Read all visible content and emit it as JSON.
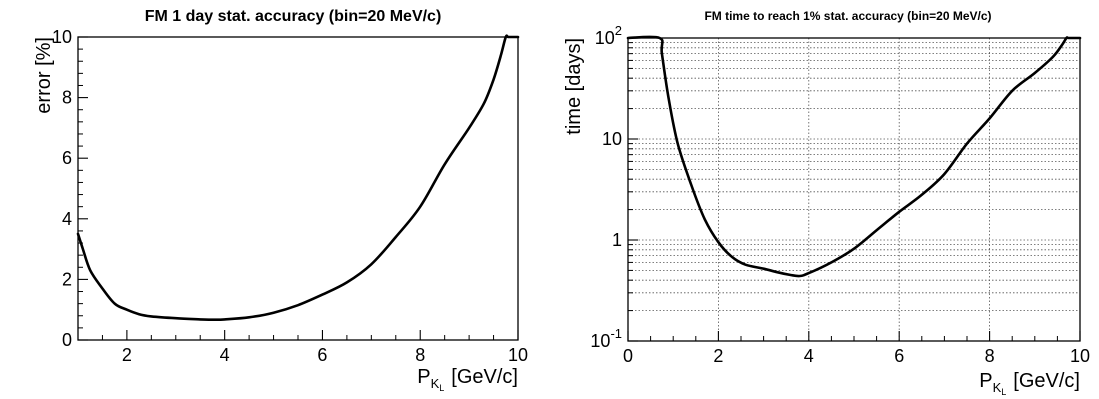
{
  "chart_data": [
    {
      "type": "line",
      "title": "FM 1 day stat. accuracy (bin=20 MeV/c)",
      "ylabel": "error [%]",
      "xlabel": {
        "main": "P",
        "sub": "K",
        "subsub": "L",
        "unit": "[GeV/c]"
      },
      "xlim": [
        1,
        10
      ],
      "ylim": [
        0,
        10
      ],
      "yscale": "linear",
      "grid": false,
      "xticks": [
        "2",
        "4",
        "6",
        "8",
        "10"
      ],
      "yticks": [
        "0",
        "2",
        "4",
        "6",
        "8",
        "10"
      ],
      "series": [
        {
          "color": "#000000",
          "x": [
            1.0,
            1.1,
            1.25,
            1.5,
            1.75,
            2.0,
            2.25,
            2.5,
            3.0,
            3.5,
            3.8,
            4.0,
            4.5,
            5.0,
            5.5,
            6.0,
            6.5,
            7.0,
            7.5,
            8.0,
            8.5,
            9.0,
            9.3,
            9.5,
            9.65,
            9.75,
            9.8,
            9.9,
            10.0
          ],
          "y": [
            3.5,
            3.0,
            2.3,
            1.7,
            1.2,
            1.0,
            0.85,
            0.78,
            0.72,
            0.68,
            0.67,
            0.68,
            0.75,
            0.9,
            1.15,
            1.5,
            1.9,
            2.5,
            3.4,
            4.4,
            5.8,
            7.0,
            7.8,
            8.6,
            9.4,
            10.0,
            10.0,
            10.0,
            10.0
          ]
        }
      ]
    },
    {
      "type": "line",
      "title": "FM time to reach 1% stat. accuracy (bin=20 MeV/c)",
      "ylabel": "time [days]",
      "xlabel": {
        "main": "P",
        "sub": "K",
        "subsub": "L",
        "unit": "[GeV/c]"
      },
      "xlim": [
        0,
        10
      ],
      "ylim": [
        0.1,
        100
      ],
      "yscale": "log",
      "grid": true,
      "xticks": [
        "0",
        "2",
        "4",
        "6",
        "8",
        "10"
      ],
      "yticks": [
        {
          "base": "10",
          "exp": "-1"
        },
        {
          "base": "1",
          "exp": ""
        },
        {
          "base": "10",
          "exp": ""
        },
        {
          "base": "10",
          "exp": "2"
        }
      ],
      "series": [
        {
          "color": "#000000",
          "x": [
            0.0,
            0.7,
            0.75,
            0.9,
            1.1,
            1.4,
            1.7,
            2.0,
            2.3,
            2.6,
            3.0,
            3.3,
            3.6,
            3.8,
            4.0,
            4.5,
            5.0,
            5.5,
            6.0,
            6.5,
            7.0,
            7.5,
            8.0,
            8.5,
            9.0,
            9.4,
            9.6,
            9.7,
            9.75,
            10.0
          ],
          "y": [
            100,
            100,
            70,
            25,
            9,
            3.5,
            1.6,
            0.95,
            0.68,
            0.57,
            0.52,
            0.48,
            0.45,
            0.44,
            0.47,
            0.6,
            0.82,
            1.25,
            1.9,
            2.8,
            4.5,
            9,
            16,
            30,
            45,
            65,
            85,
            100,
            100,
            100
          ]
        }
      ]
    }
  ]
}
